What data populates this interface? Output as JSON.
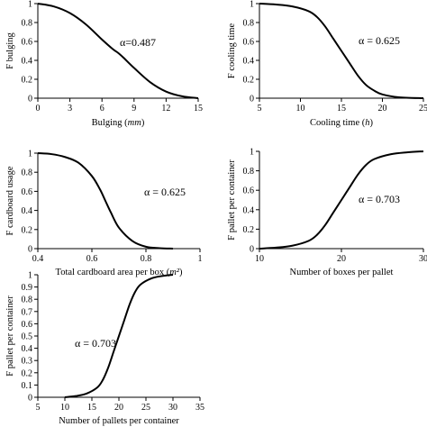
{
  "chart_data": [
    {
      "type": "line",
      "id": "bulging",
      "title": "",
      "xlabel": "Bulging (mm)",
      "xlabel_main": "Bulging",
      "xlabel_unit": "mm",
      "ylabel": "F bulging",
      "annotation": "α=0.487",
      "xlim": [
        0,
        15
      ],
      "ylim": [
        0,
        1
      ],
      "x_ticks": [
        0,
        3,
        6,
        9,
        12,
        15
      ],
      "y_ticks": [
        0,
        0.2,
        0.4,
        0.6,
        0.8,
        1
      ],
      "x_tick_labels": [
        "0",
        "3",
        "6",
        "9",
        "12",
        "15"
      ],
      "y_tick_labels": [
        "0",
        "0.2",
        "0.4",
        "0.6",
        "0.8",
        "1"
      ],
      "series": [
        {
          "x": [
            0,
            1.5,
            3,
            4.5,
            6,
            7,
            7.5,
            8,
            9,
            10.5,
            12,
            13.5,
            15
          ],
          "y": [
            1.0,
            0.97,
            0.9,
            0.78,
            0.62,
            0.52,
            0.48,
            0.43,
            0.32,
            0.17,
            0.07,
            0.02,
            0.0
          ]
        }
      ]
    },
    {
      "type": "line",
      "id": "cooling",
      "title": "",
      "xlabel": "Cooling time (h)",
      "xlabel_main": "Cooling time",
      "xlabel_unit": "h",
      "ylabel": "F cooling time",
      "annotation": "α = 0.625",
      "xlim": [
        5,
        25
      ],
      "ylim": [
        0,
        1
      ],
      "x_ticks": [
        5,
        10,
        15,
        20,
        25
      ],
      "y_ticks": [
        0,
        0.2,
        0.4,
        0.6,
        0.8,
        1
      ],
      "x_tick_labels": [
        "5",
        "10",
        "15",
        "20",
        "25"
      ],
      "y_tick_labels": [
        "0",
        "0.2",
        "0.4",
        "0.6",
        "0.8",
        "1"
      ],
      "series": [
        {
          "x": [
            5,
            7,
            9,
            11,
            12,
            13,
            14,
            15,
            16,
            17,
            18,
            19,
            20,
            22,
            25
          ],
          "y": [
            1.0,
            0.99,
            0.97,
            0.92,
            0.86,
            0.76,
            0.63,
            0.5,
            0.37,
            0.24,
            0.14,
            0.08,
            0.04,
            0.01,
            0.0
          ]
        }
      ]
    },
    {
      "type": "line",
      "id": "cardboard",
      "title": "",
      "xlabel": "Total cardboard area per box (m²)",
      "xlabel_main": "Total cardboard area per box",
      "xlabel_unit": "m²",
      "ylabel": "F cardboard usage",
      "annotation": "α = 0.625",
      "xlim": [
        0.4,
        1
      ],
      "ylim": [
        0,
        1
      ],
      "x_ticks": [
        0.4,
        0.6,
        0.8,
        1
      ],
      "y_ticks": [
        0,
        0.2,
        0.4,
        0.6,
        0.8,
        1
      ],
      "x_tick_labels": [
        "0.4",
        "0.6",
        "0.8",
        "1"
      ],
      "y_tick_labels": [
        "0",
        "0.2",
        "0.4",
        "0.6",
        "0.8",
        "1"
      ],
      "series": [
        {
          "x": [
            0.4,
            0.45,
            0.5,
            0.55,
            0.6,
            0.63,
            0.65,
            0.67,
            0.7,
            0.75,
            0.8,
            0.85,
            0.9
          ],
          "y": [
            1.0,
            0.99,
            0.96,
            0.9,
            0.76,
            0.62,
            0.5,
            0.38,
            0.22,
            0.08,
            0.02,
            0.005,
            0.0
          ]
        }
      ]
    },
    {
      "type": "line",
      "id": "boxes",
      "title": "",
      "xlabel": "Number of boxes per pallet",
      "ylabel": "F pallet per container",
      "annotation": "α = 0.703",
      "xlim": [
        10,
        30
      ],
      "ylim": [
        0,
        1
      ],
      "x_ticks": [
        10,
        20,
        30
      ],
      "y_ticks": [
        0,
        0.2,
        0.4,
        0.6,
        0.8,
        1
      ],
      "x_tick_labels": [
        "10",
        "20",
        "30"
      ],
      "y_tick_labels": [
        "0",
        "0.2",
        "0.4",
        "0.6",
        "0.8",
        "1"
      ],
      "series": [
        {
          "x": [
            10,
            12,
            14,
            16,
            17,
            18,
            19,
            20,
            21,
            22,
            23,
            24,
            26,
            28,
            30
          ],
          "y": [
            0.0,
            0.01,
            0.03,
            0.08,
            0.14,
            0.24,
            0.37,
            0.5,
            0.63,
            0.76,
            0.86,
            0.92,
            0.97,
            0.99,
            1.0
          ]
        }
      ]
    },
    {
      "type": "line",
      "id": "pallets",
      "title": "",
      "xlabel": "Number of pallets per container",
      "ylabel": "F pallet per container",
      "annotation": "α = 0.703",
      "xlim": [
        5,
        35
      ],
      "ylim": [
        0,
        1
      ],
      "x_ticks": [
        5,
        10,
        15,
        20,
        25,
        30,
        35
      ],
      "y_ticks": [
        0,
        0.1,
        0.2,
        0.3,
        0.4,
        0.5,
        0.6,
        0.7,
        0.8,
        0.9,
        1
      ],
      "x_tick_labels": [
        "5",
        "10",
        "15",
        "20",
        "25",
        "30",
        "35"
      ],
      "y_tick_labels": [
        "0",
        "0.1",
        "0.2",
        "0.3",
        "0.4",
        "0.5",
        "0.6",
        "0.7",
        "0.8",
        "0.9",
        "1"
      ],
      "series": [
        {
          "x": [
            10,
            12,
            14,
            16,
            17,
            18,
            19,
            20,
            21,
            22,
            23,
            24,
            26,
            28,
            30
          ],
          "y": [
            0.0,
            0.01,
            0.03,
            0.08,
            0.14,
            0.24,
            0.37,
            0.5,
            0.63,
            0.76,
            0.86,
            0.92,
            0.97,
            0.99,
            1.0
          ]
        }
      ]
    }
  ]
}
